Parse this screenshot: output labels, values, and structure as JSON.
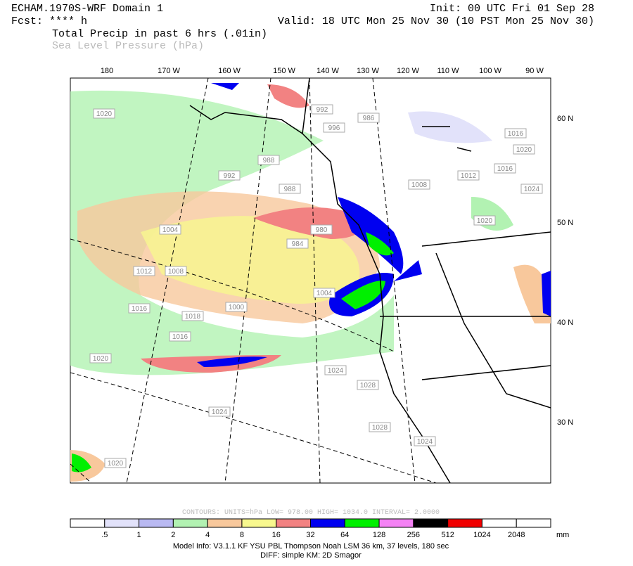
{
  "header": {
    "title": "ECHAM.1970S-WRF Domain 1",
    "init": "Init: 00 UTC Fri 01 Sep 28",
    "forecast": "Fcst: **** h",
    "valid": "Valid: 18 UTC Mon 25 Nov 30 (10 PST Mon 25 Nov 30)",
    "field1": "Total Precip in past 6 hrs (.01in)",
    "field2": "Sea Level Pressure (hPa)"
  },
  "map": {
    "longitude_labels": [
      "180",
      "170 W",
      "160 W",
      "150 W",
      "140 W",
      "130 W",
      "120 W",
      "110 W",
      "100 W",
      "90 W"
    ],
    "latitude_labels": [
      "60 N",
      "50 N",
      "40 N",
      "30 N"
    ],
    "contour_labels": [
      "1020",
      "992",
      "996",
      "986",
      "1016",
      "1020",
      "988",
      "992",
      "1008",
      "1012",
      "1016",
      "1024",
      "988",
      "1020",
      "980",
      "984",
      "1004",
      "1012",
      "1008",
      "1016",
      "1000",
      "1018",
      "1004",
      "1016",
      "1020",
      "1024",
      "1028",
      "1024",
      "1028",
      "1024",
      "1020"
    ]
  },
  "contour_info": "CONTOURS:  UNITS=hPa  LOW=  978.00      HIGH=  1034.0      INTERVAL=    2.0000",
  "legend": {
    "labels": [
      ".5",
      "1",
      "2",
      "4",
      "8",
      "16",
      "32",
      "64",
      "128",
      "256",
      "512",
      "1024",
      "2048"
    ],
    "unit": "mm",
    "colors": [
      "#ffffff",
      "#e2e2fa",
      "#b9b9f2",
      "#b2f2b2",
      "#f8c89c",
      "#f8f88e",
      "#f28282",
      "#0000f0",
      "#00f000",
      "#f482f4",
      "#000000",
      "#f00000",
      "#ffffff",
      "#ffffff"
    ]
  },
  "footer": {
    "model_info": "Model Info: V3.1.1    KF     YSU PBL   Thompson    Noah LSM   36 km,   37 levels,  180 sec",
    "diff": "DIFF: simple KM: 2D Smagor"
  }
}
